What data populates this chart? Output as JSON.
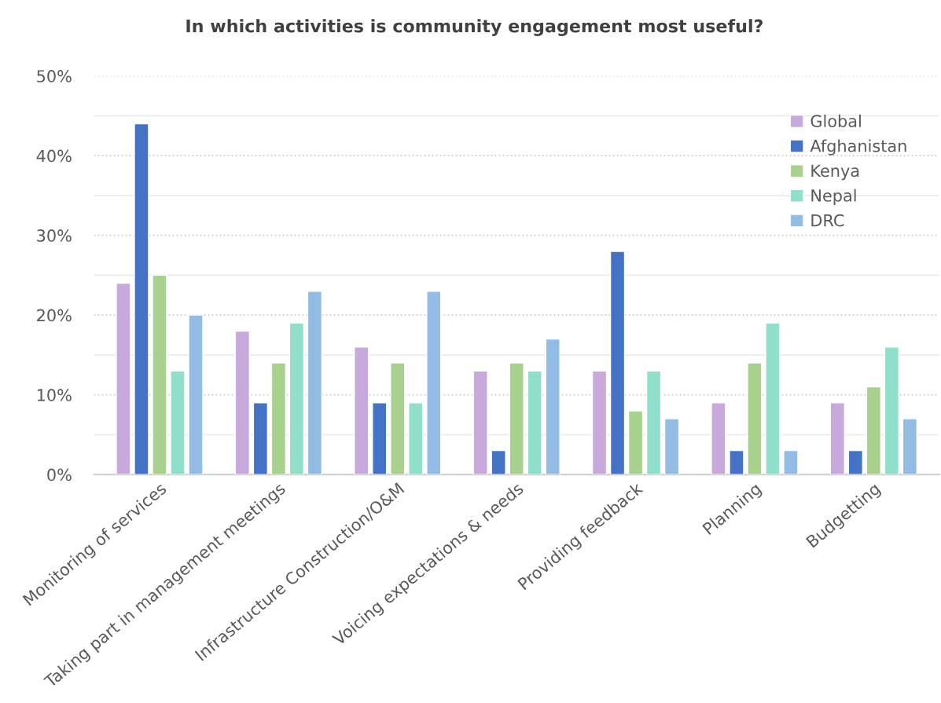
{
  "chart_data": {
    "type": "bar",
    "title": "In which activities is community engagement most useful?",
    "categories": [
      "Monitoring of services",
      "Taking part in management meetings",
      "Infrastructure Construction/O&M",
      "Voicing expectations & needs",
      "Providing feedback",
      "Planning",
      "Budgetting"
    ],
    "series": [
      {
        "name": "Global",
        "color": "#c8a9dc",
        "values": [
          24,
          18,
          16,
          13,
          13,
          9,
          9
        ]
      },
      {
        "name": "Afghanistan",
        "color": "#4472c4",
        "values": [
          44,
          9,
          9,
          3,
          28,
          3,
          3
        ]
      },
      {
        "name": "Kenya",
        "color": "#a9d18e",
        "values": [
          25,
          14,
          14,
          14,
          8,
          14,
          11
        ]
      },
      {
        "name": "Nepal",
        "color": "#8fdfcb",
        "values": [
          13,
          19,
          9,
          13,
          13,
          19,
          16
        ]
      },
      {
        "name": "DRC",
        "color": "#92bce3",
        "values": [
          20,
          23,
          23,
          17,
          7,
          3,
          7
        ]
      }
    ],
    "ylim": [
      0,
      50
    ],
    "yticks": [
      {
        "value": 0,
        "label": "0%"
      },
      {
        "value": 5,
        "label": null
      },
      {
        "value": 10,
        "label": "10%"
      },
      {
        "value": 15,
        "label": null
      },
      {
        "value": 20,
        "label": "20%"
      },
      {
        "value": 25,
        "label": null
      },
      {
        "value": 30,
        "label": "30%"
      },
      {
        "value": 35,
        "label": null
      },
      {
        "value": 40,
        "label": "40%"
      },
      {
        "value": 45,
        "label": null
      },
      {
        "value": 50,
        "label": "50%"
      }
    ],
    "grid": "y",
    "legend": "top right"
  }
}
